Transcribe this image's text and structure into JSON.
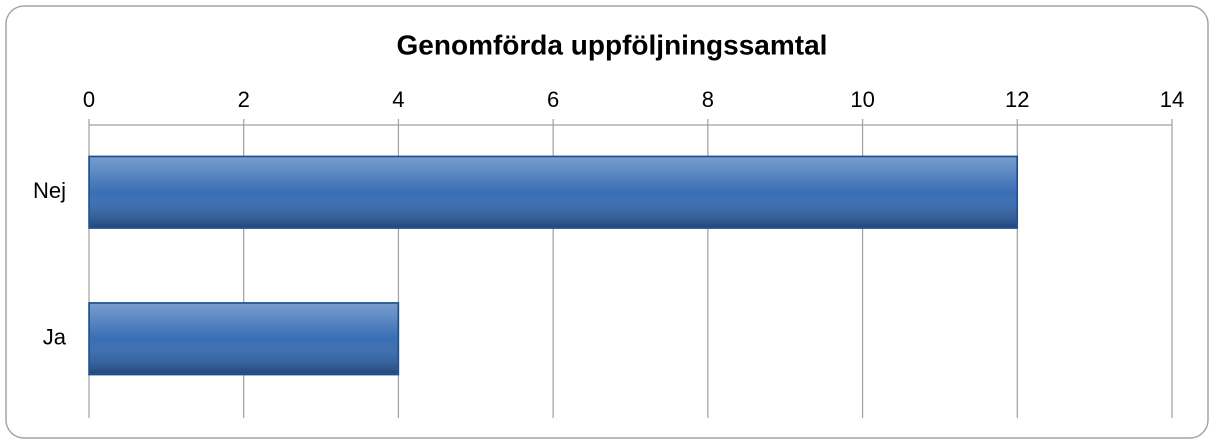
{
  "chart_data": {
    "type": "bar",
    "orientation": "horizontal",
    "title": "Genomförda uppföljningssamtal",
    "categories": [
      "Nej",
      "Ja"
    ],
    "values": [
      12,
      4
    ],
    "color": "#2f67b1",
    "xlim": [
      0,
      14
    ],
    "xticks": [
      0,
      2,
      4,
      6,
      8,
      10,
      12,
      14
    ],
    "grid": true
  }
}
